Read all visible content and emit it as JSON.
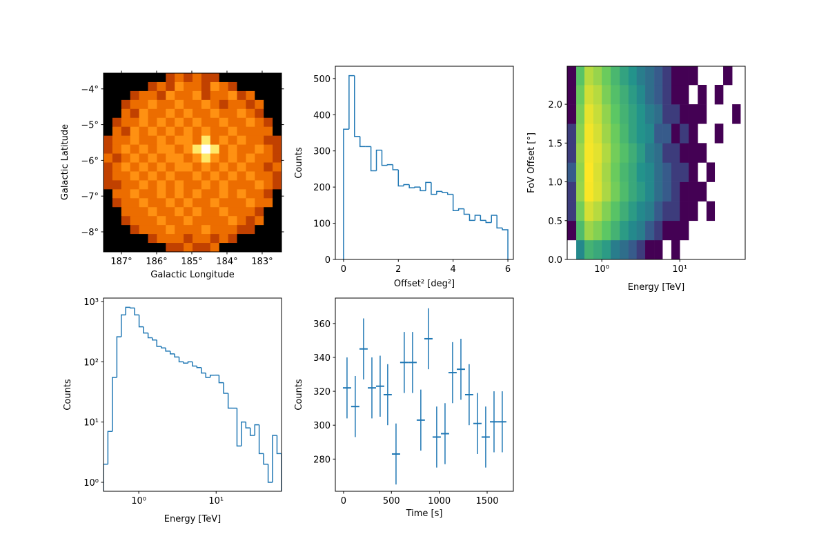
{
  "chart_data": [
    {
      "type": "image",
      "xlabel": "Galactic Longitude",
      "ylabel": "Galactic Latitude",
      "xlim": [
        187.51,
        182.45
      ],
      "ylim": [
        -8.56,
        -3.56
      ],
      "xticks": [
        {
          "value": 187,
          "label": "187°"
        },
        {
          "value": 186,
          "label": "186°"
        },
        {
          "value": 185,
          "label": "185°"
        },
        {
          "value": 184,
          "label": "184°"
        },
        {
          "value": 183,
          "label": "183°"
        }
      ],
      "yticks": [
        {
          "value": -4,
          "label": "−4°"
        },
        {
          "value": -5,
          "label": "−5°"
        },
        {
          "value": -6,
          "label": "−6°"
        },
        {
          "value": -7,
          "label": "−7°"
        },
        {
          "value": -8,
          "label": "−8°"
        }
      ],
      "colormap": "afmhot",
      "stretch": "sqrt",
      "mirror_ticks": true,
      "z": [
        [
          0,
          0,
          0,
          0,
          0,
          0,
          0,
          2,
          3,
          2,
          3,
          2,
          2,
          0,
          0,
          0,
          0,
          0,
          0,
          0
        ],
        [
          0,
          0,
          0,
          0,
          0,
          2,
          3,
          2,
          4,
          3,
          3,
          2,
          4,
          3,
          2,
          0,
          0,
          0,
          0,
          0
        ],
        [
          0,
          0,
          0,
          2,
          3,
          3,
          2,
          4,
          3,
          3,
          4,
          2,
          3,
          3,
          4,
          2,
          3,
          0,
          0,
          0
        ],
        [
          0,
          0,
          2,
          3,
          3,
          4,
          3,
          3,
          4,
          3,
          3,
          4,
          3,
          2,
          3,
          3,
          2,
          3,
          0,
          0
        ],
        [
          0,
          0,
          3,
          2,
          4,
          3,
          3,
          4,
          3,
          4,
          3,
          3,
          4,
          3,
          3,
          4,
          3,
          2,
          0,
          0
        ],
        [
          0,
          2,
          3,
          3,
          4,
          3,
          4,
          3,
          4,
          3,
          4,
          3,
          3,
          4,
          3,
          3,
          4,
          3,
          2,
          0
        ],
        [
          0,
          3,
          2,
          4,
          3,
          4,
          3,
          4,
          3,
          4,
          3,
          4,
          3,
          3,
          4,
          3,
          3,
          3,
          3,
          0
        ],
        [
          2,
          3,
          3,
          4,
          3,
          3,
          4,
          3,
          4,
          4,
          3,
          7,
          3,
          4,
          3,
          4,
          3,
          3,
          2,
          2
        ],
        [
          2,
          3,
          4,
          3,
          4,
          3,
          4,
          4,
          3,
          4,
          7,
          14,
          7,
          3,
          4,
          3,
          3,
          4,
          3,
          2
        ],
        [
          3,
          2,
          3,
          4,
          3,
          4,
          3,
          4,
          4,
          3,
          4,
          7,
          4,
          3,
          4,
          3,
          4,
          3,
          3,
          2
        ],
        [
          2,
          3,
          4,
          3,
          4,
          3,
          4,
          3,
          4,
          4,
          3,
          4,
          3,
          4,
          3,
          4,
          3,
          3,
          2,
          3
        ],
        [
          2,
          3,
          3,
          4,
          3,
          4,
          3,
          4,
          3,
          3,
          4,
          3,
          4,
          3,
          4,
          3,
          4,
          3,
          3,
          2
        ],
        [
          2,
          2,
          3,
          3,
          4,
          3,
          4,
          3,
          4,
          3,
          3,
          4,
          3,
          4,
          3,
          3,
          3,
          4,
          3,
          2
        ],
        [
          0,
          3,
          3,
          4,
          3,
          3,
          4,
          3,
          4,
          3,
          4,
          3,
          3,
          4,
          3,
          4,
          3,
          3,
          2,
          0
        ],
        [
          0,
          2,
          3,
          3,
          4,
          3,
          3,
          4,
          3,
          4,
          3,
          3,
          4,
          3,
          3,
          3,
          4,
          3,
          3,
          0
        ],
        [
          0,
          0,
          3,
          3,
          3,
          4,
          3,
          3,
          4,
          3,
          4,
          3,
          3,
          4,
          3,
          3,
          3,
          2,
          0,
          0
        ],
        [
          0,
          0,
          2,
          3,
          3,
          3,
          4,
          3,
          3,
          4,
          3,
          3,
          3,
          3,
          4,
          3,
          2,
          3,
          0,
          0
        ],
        [
          0,
          0,
          0,
          2,
          3,
          3,
          3,
          4,
          3,
          3,
          3,
          4,
          3,
          3,
          3,
          2,
          2,
          0,
          0,
          0
        ],
        [
          0,
          0,
          0,
          0,
          0,
          2,
          3,
          3,
          3,
          2,
          3,
          3,
          2,
          3,
          2,
          0,
          0,
          0,
          0,
          0
        ],
        [
          0,
          0,
          0,
          0,
          0,
          0,
          0,
          2,
          2,
          3,
          2,
          2,
          3,
          0,
          0,
          0,
          0,
          0,
          0,
          0
        ]
      ]
    },
    {
      "type": "histogram",
      "xlabel": "Offset² [deg²]",
      "ylabel": "Counts",
      "color": "#1f77b4",
      "xlim": [
        -0.3,
        6.2
      ],
      "ylim": [
        0,
        534
      ],
      "xticks": [
        0,
        2,
        4,
        6
      ],
      "yticks": [
        0,
        100,
        200,
        300,
        400,
        500
      ],
      "bins": [
        0,
        0.2,
        0.4,
        0.6,
        0.8,
        1,
        1.2,
        1.4,
        1.6,
        1.8,
        2,
        2.2,
        2.4,
        2.6,
        2.8,
        3,
        3.2,
        3.4,
        3.6,
        3.8,
        4,
        4.2,
        4.4,
        4.6,
        4.8,
        5,
        5.2,
        5.4,
        5.6,
        5.8,
        6
      ],
      "values": [
        360,
        508,
        340,
        312,
        312,
        245,
        302,
        260,
        262,
        248,
        203,
        207,
        198,
        200,
        190,
        213,
        180,
        188,
        185,
        180,
        135,
        140,
        125,
        108,
        122,
        108,
        102,
        122,
        87,
        82
      ]
    },
    {
      "type": "hist2d",
      "xlabel": "Energy [TeV]",
      "ylabel": "FoV Offset [°]",
      "xscale": "log",
      "colormap": "viridis",
      "norm": "log",
      "xlim": [
        0.36,
        69
      ],
      "ylim": [
        0,
        2.49
      ],
      "xticks": [
        {
          "value": 1,
          "label": "10⁰"
        },
        {
          "value": 10,
          "label": "10¹"
        }
      ],
      "yticks": [
        {
          "value": 0,
          "label": "0.0"
        },
        0.5,
        {
          "value": 1,
          "label": "1.0"
        },
        1.5,
        {
          "value": 2,
          "label": "2.0"
        }
      ],
      "xbins": [
        0.36,
        0.47,
        0.6,
        0.78,
        1,
        1.3,
        1.7,
        2.2,
        2.8,
        3.6,
        4.7,
        6,
        7.8,
        10,
        13,
        17,
        22,
        28,
        36,
        47,
        60
      ],
      "ybins": [
        0,
        0.25,
        0.5,
        0.75,
        1,
        1.25,
        1.5,
        1.75,
        2,
        2.25,
        2.5
      ],
      "z": [
        [
          0,
          6,
          12,
          10,
          8,
          5,
          4,
          3,
          2,
          1,
          1,
          0,
          1,
          0,
          0,
          0,
          0,
          0,
          0,
          0
        ],
        [
          1,
          14,
          26,
          22,
          17,
          12,
          8,
          6,
          5,
          3,
          2,
          1,
          1,
          1,
          0,
          0,
          0,
          0,
          0,
          0
        ],
        [
          2,
          20,
          36,
          30,
          22,
          16,
          11,
          8,
          6,
          5,
          3,
          2,
          2,
          1,
          1,
          0,
          1,
          0,
          0,
          0
        ],
        [
          2,
          25,
          45,
          38,
          28,
          20,
          14,
          10,
          8,
          6,
          4,
          3,
          2,
          1,
          1,
          1,
          0,
          0,
          0,
          0
        ],
        [
          3,
          24,
          46,
          37,
          27,
          19,
          13,
          10,
          7,
          6,
          4,
          3,
          2,
          2,
          1,
          0,
          1,
          0,
          0,
          0
        ],
        [
          2,
          26,
          44,
          39,
          29,
          20,
          15,
          11,
          8,
          5,
          4,
          2,
          2,
          1,
          1,
          1,
          0,
          0,
          0,
          0
        ],
        [
          2,
          23,
          43,
          36,
          26,
          19,
          13,
          9,
          7,
          6,
          3,
          3,
          1,
          2,
          1,
          0,
          0,
          1,
          0,
          0
        ],
        [
          1,
          21,
          40,
          33,
          24,
          17,
          12,
          9,
          7,
          5,
          4,
          2,
          2,
          1,
          1,
          1,
          0,
          0,
          0,
          1
        ],
        [
          1,
          19,
          35,
          30,
          21,
          15,
          11,
          8,
          6,
          4,
          3,
          2,
          1,
          1,
          0,
          1,
          0,
          1,
          0,
          0
        ],
        [
          1,
          16,
          30,
          25,
          19,
          13,
          9,
          7,
          5,
          4,
          3,
          2,
          1,
          1,
          1,
          0,
          0,
          0,
          1,
          0
        ]
      ]
    },
    {
      "type": "histogram",
      "xlabel": "Energy [TeV]",
      "ylabel": "Counts",
      "color": "#1f77b4",
      "xscale": "log",
      "yscale": "log",
      "xlim": [
        0.35,
        70
      ],
      "ylim": [
        0.71,
        1140
      ],
      "xticks": [
        {
          "value": 1,
          "label": "10⁰"
        },
        {
          "value": 10,
          "label": "10¹"
        }
      ],
      "yticks": [
        {
          "value": 1,
          "label": "10⁰"
        },
        {
          "value": 10,
          "label": "10¹"
        },
        {
          "value": 100,
          "label": "10²"
        },
        {
          "value": 1000,
          "label": "10³"
        }
      ],
      "bins": [
        0.35,
        0.399,
        0.456,
        0.521,
        0.594,
        0.678,
        0.774,
        0.884,
        1.01,
        1.15,
        1.32,
        1.5,
        1.71,
        1.96,
        2.23,
        2.55,
        2.91,
        3.32,
        3.79,
        4.33,
        4.94,
        5.64,
        6.44,
        7.35,
        8.39,
        9.58,
        10.9,
        12.5,
        14.3,
        16.3,
        18.6,
        21.2,
        24.2,
        27.6,
        31.6,
        36,
        41.1,
        47,
        53.6,
        61.2,
        69.8
      ],
      "values": [
        2,
        7,
        55,
        260,
        600,
        800,
        780,
        600,
        380,
        300,
        250,
        230,
        180,
        170,
        150,
        135,
        120,
        100,
        95,
        100,
        85,
        80,
        65,
        55,
        60,
        60,
        45,
        30,
        17,
        17,
        4,
        10,
        8,
        6,
        9,
        3,
        2,
        1,
        6,
        3
      ]
    },
    {
      "type": "errorbar",
      "xlabel": "Time [s]",
      "ylabel": "Counts",
      "color": "#1f77b4",
      "xlim": [
        -86,
        1774
      ],
      "ylim": [
        261,
        375
      ],
      "xticks": [
        0,
        500,
        1000,
        1500
      ],
      "yticks": [
        280,
        300,
        320,
        340,
        360
      ],
      "x": [
        36,
        122,
        209,
        296,
        382,
        461,
        548,
        634,
        721,
        807,
        887,
        973,
        1060,
        1139,
        1226,
        1312,
        1399,
        1485,
        1572,
        1658
      ],
      "values": [
        322,
        311,
        345,
        322,
        323,
        318,
        283,
        337,
        337,
        303,
        351,
        293,
        295,
        331,
        333,
        318,
        301,
        293,
        302,
        302
      ],
      "xerr": [
        43,
        43,
        43,
        43,
        43,
        43,
        43,
        43,
        43,
        43,
        43,
        43,
        43,
        43,
        43,
        43,
        43,
        43,
        43,
        43
      ],
      "yerr": [
        18,
        18,
        18,
        18,
        18,
        18,
        18,
        18,
        18,
        18,
        18,
        18,
        18,
        18,
        18,
        18,
        18,
        18,
        18,
        18
      ]
    }
  ]
}
